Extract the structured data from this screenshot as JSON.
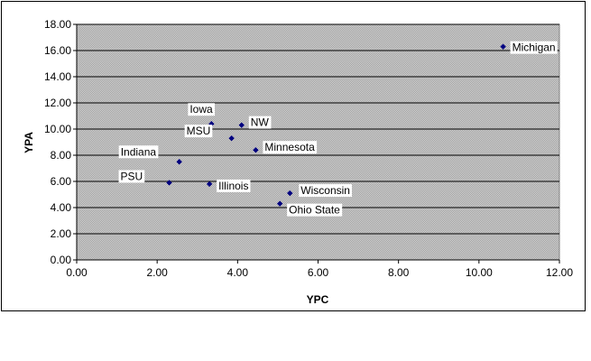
{
  "chart_data": {
    "type": "scatter",
    "title": "",
    "xlabel": "YPC",
    "ylabel": "YPA",
    "xlim": [
      0,
      12
    ],
    "ylim": [
      0,
      18
    ],
    "x_ticks": [
      "0.00",
      "2.00",
      "4.00",
      "6.00",
      "8.00",
      "10.00",
      "12.00"
    ],
    "y_ticks": [
      "0.00",
      "2.00",
      "4.00",
      "6.00",
      "8.00",
      "10.00",
      "12.00",
      "14.00",
      "16.00",
      "18.00"
    ],
    "grid": "horizontal",
    "legend": "none",
    "points": [
      {
        "label": "Michigan",
        "x": 10.6,
        "y": 16.3
      },
      {
        "label": "Iowa",
        "x": 3.35,
        "y": 10.4
      },
      {
        "label": "NW",
        "x": 4.1,
        "y": 10.3
      },
      {
        "label": "MSU",
        "x": 3.85,
        "y": 9.3
      },
      {
        "label": "Minnesota",
        "x": 4.45,
        "y": 8.4
      },
      {
        "label": "Indiana",
        "x": 2.55,
        "y": 7.5
      },
      {
        "label": "PSU",
        "x": 2.3,
        "y": 5.9
      },
      {
        "label": "Illinois",
        "x": 3.3,
        "y": 5.8
      },
      {
        "label": "Wisconsin",
        "x": 5.3,
        "y": 5.1
      },
      {
        "label": "Ohio State",
        "x": 5.05,
        "y": 4.3
      }
    ]
  },
  "colors": {
    "plot_bg": "#c0c0c0",
    "grid": "#000000",
    "marker": "#000080"
  }
}
